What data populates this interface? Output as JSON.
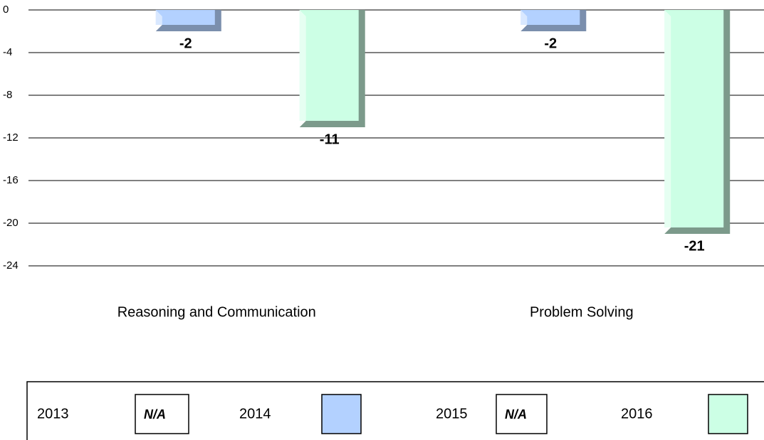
{
  "chart_data": {
    "type": "bar",
    "categories": [
      "Reasoning and Communication",
      "Problem Solving"
    ],
    "series": [
      {
        "name": "2013",
        "values": [
          null,
          null
        ],
        "legend_note": "N/A"
      },
      {
        "name": "2014",
        "color": "#b3d1ff",
        "side_color": "#7b8fad",
        "values": [
          -2,
          -2
        ]
      },
      {
        "name": "2015",
        "values": [
          null,
          null
        ],
        "legend_note": "N/A"
      },
      {
        "name": "2016",
        "color": "#ccffe5",
        "side_color": "#7c9a8b",
        "values": [
          -11,
          -21
        ]
      }
    ],
    "ylim": [
      -24,
      0
    ],
    "yticks": [
      0,
      -4,
      -8,
      -12,
      -16,
      -20,
      -24
    ],
    "grid": true
  }
}
